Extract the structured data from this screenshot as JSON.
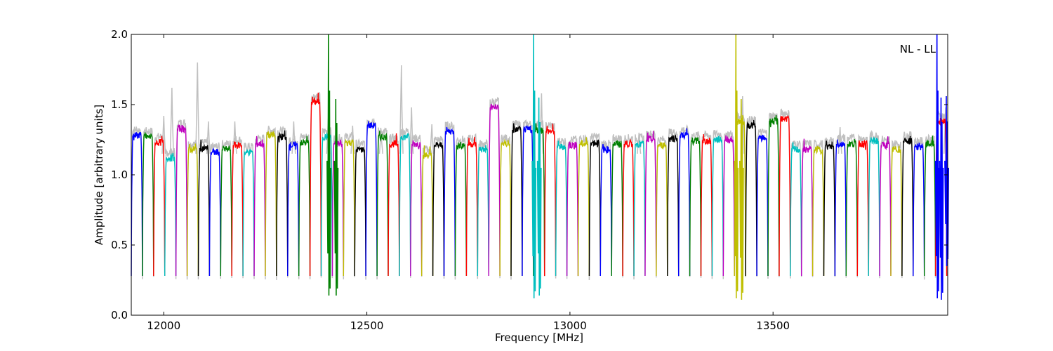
{
  "chart_data": {
    "type": "line",
    "title": "",
    "xlabel": "Frequency [MHz]",
    "ylabel": "Amplitude [arbitrary units]",
    "xlim": [
      11920,
      13930
    ],
    "ylim": [
      0.0,
      2.0
    ],
    "xticks": [
      12000,
      12500,
      13000,
      13500
    ],
    "yticks": [
      0.0,
      0.5,
      1.0,
      1.5,
      2.0
    ],
    "xtick_labels": [
      "12000",
      "12500",
      "13000",
      "13500"
    ],
    "ytick_labels": [
      "0.0",
      "0.5",
      "1.0",
      "1.5",
      "2.0"
    ],
    "annotation": "NL - LL",
    "annotation_position": "top-right",
    "grid": false,
    "legend": "none",
    "series_colors": [
      "#0000ff",
      "#008000",
      "#ff0000",
      "#00bfbf",
      "#bf00bf",
      "#bfbf00",
      "#000000"
    ],
    "background_series_color": "#c0c0c0",
    "channel_start_mhz": 11920,
    "channel_width_mhz": 27.5,
    "channel_count": 73,
    "channel_min_amplitude": 0.28,
    "channel_plateau_amplitudes": [
      1.28,
      1.27,
      1.23,
      1.12,
      1.33,
      1.18,
      1.19,
      1.16,
      1.18,
      1.21,
      1.16,
      1.22,
      1.28,
      1.27,
      1.21,
      1.23,
      1.52,
      1.27,
      1.22,
      1.23,
      1.18,
      1.35,
      1.27,
      1.22,
      1.27,
      1.22,
      1.14,
      1.21,
      1.31,
      1.21,
      1.22,
      1.18,
      1.48,
      1.22,
      1.32,
      1.32,
      1.32,
      1.31,
      1.2,
      1.21,
      1.22,
      1.23,
      1.18,
      1.22,
      1.22,
      1.22,
      1.25,
      1.21,
      1.26,
      1.28,
      1.24,
      1.24,
      1.25,
      1.25,
      1.38,
      1.35,
      1.26,
      1.38,
      1.4,
      1.18,
      1.18,
      1.18,
      1.2,
      1.22,
      1.22,
      1.22,
      1.24,
      1.21,
      1.18,
      1.24,
      1.2,
      1.22,
      1.38
    ],
    "background_peaks": [
      {
        "x": 12000,
        "y": 1.42
      },
      {
        "x": 12020,
        "y": 1.62
      },
      {
        "x": 12083,
        "y": 1.8
      },
      {
        "x": 12110,
        "y": 1.38
      },
      {
        "x": 12175,
        "y": 1.38
      },
      {
        "x": 12320,
        "y": 1.38
      },
      {
        "x": 12405,
        "y": 1.4
      },
      {
        "x": 12465,
        "y": 1.35
      },
      {
        "x": 12535,
        "y": 1.32
      },
      {
        "x": 12585,
        "y": 1.78
      },
      {
        "x": 12610,
        "y": 1.48
      },
      {
        "x": 12660,
        "y": 1.36
      },
      {
        "x": 12930,
        "y": 1.58
      },
      {
        "x": 13170,
        "y": 1.3
      },
      {
        "x": 13425,
        "y": 1.56
      },
      {
        "x": 13665,
        "y": 1.34
      },
      {
        "x": 13925,
        "y": 1.48
      }
    ],
    "spikes": [
      {
        "x": 12407,
        "min": 0.14,
        "max": 2.0,
        "series_index": 1
      },
      {
        "x": 12425,
        "min": 0.14,
        "max": 1.54,
        "series_index": 1
      },
      {
        "x": 12912,
        "min": 0.12,
        "max": 2.0,
        "series_index": 3
      },
      {
        "x": 12925,
        "min": 0.14,
        "max": 1.55,
        "series_index": 3
      },
      {
        "x": 13410,
        "min": 0.12,
        "max": 2.0,
        "series_index": 5
      },
      {
        "x": 13423,
        "min": 0.11,
        "max": 1.54,
        "series_index": 5
      },
      {
        "x": 13905,
        "min": 0.12,
        "max": 2.0,
        "series_index": 0
      },
      {
        "x": 13915,
        "min": 0.11,
        "max": 1.55,
        "series_index": 0
      },
      {
        "x": 13928,
        "min": 0.35,
        "max": 1.56,
        "series_index": 0
      }
    ]
  }
}
